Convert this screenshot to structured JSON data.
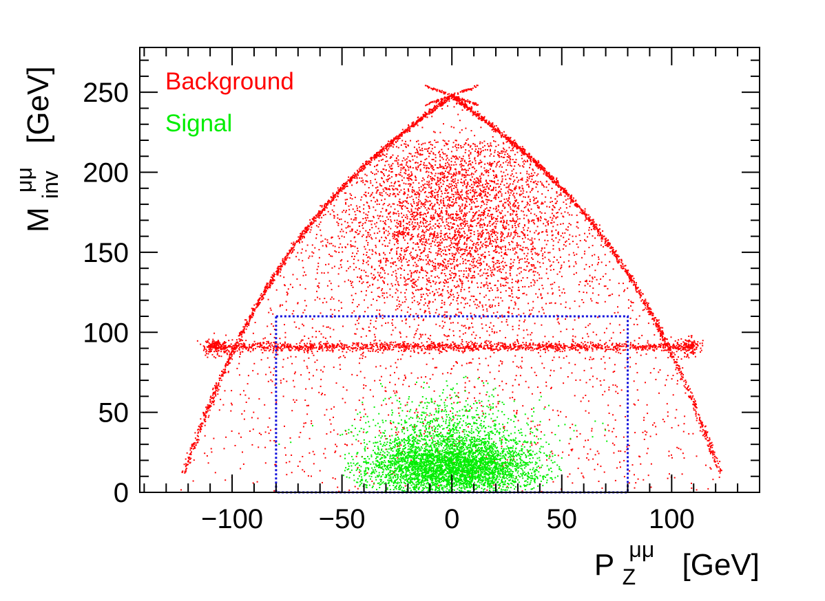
{
  "chart_data": {
    "type": "scatter",
    "title": "",
    "xlabel": {
      "base": "P",
      "sub": "Z",
      "sup": "μμ",
      "unit": "[GeV]"
    },
    "ylabel": {
      "base": "M",
      "sub": "inv",
      "sup": "μμ",
      "unit": "[GeV]"
    },
    "xlim": [
      -142,
      140
    ],
    "ylim": [
      0,
      278
    ],
    "x_ticks": [
      -100,
      -50,
      0,
      50,
      100
    ],
    "x_tick_labels": [
      "−100",
      "−50",
      "0",
      "50",
      "100"
    ],
    "y_ticks": [
      0,
      50,
      100,
      150,
      200,
      250
    ],
    "y_tick_labels": [
      "0",
      "50",
      "100",
      "150",
      "200",
      "250"
    ],
    "grid": false,
    "legend_position": "top-left",
    "series": [
      {
        "name": "Background",
        "color": "#ff0000",
        "kinematic_boundary_apex": [
          0,
          248
        ],
        "kinematic_boundary_base": [
          [
            -125,
            12
          ],
          [
            124,
            12
          ]
        ],
        "z_peak_band_y": 91,
        "z_peak_x_range": [
          -110,
          110
        ],
        "dense_core_center": [
          0,
          175
        ],
        "dense_core_spread": [
          28,
          35
        ]
      },
      {
        "name": "Signal",
        "color": "#00ee00",
        "core_center": [
          0,
          16
        ],
        "core_x_range": [
          -50,
          52
        ],
        "core_y_range": [
          0,
          40
        ],
        "tail_max_y": 75
      }
    ],
    "annotations": [
      {
        "type": "box",
        "style": "dotted",
        "color": "#1010dd",
        "x": [
          -80,
          80
        ],
        "y": [
          0,
          110
        ]
      }
    ]
  },
  "legend": {
    "background_label": "Background",
    "signal_label": "Signal"
  },
  "x_axis": {
    "base": "P",
    "sub": "Z",
    "sup": "μμ",
    "unit": "[GeV]"
  },
  "y_axis": {
    "base": "M",
    "sub": "inv",
    "sup": "μμ",
    "unit": "[GeV]"
  }
}
